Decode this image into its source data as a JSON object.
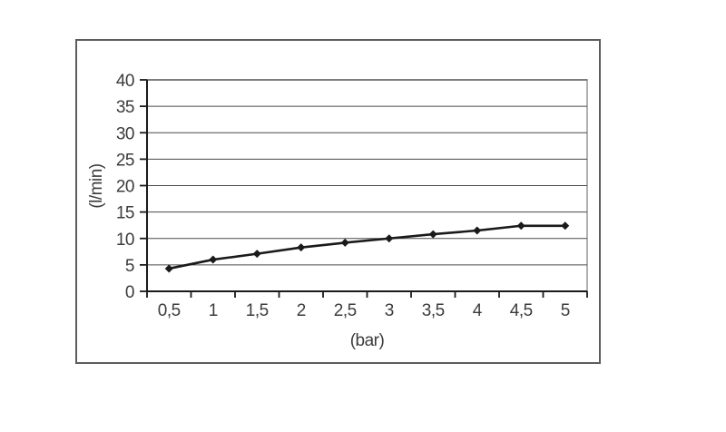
{
  "chart_data": {
    "type": "line",
    "title": "",
    "xlabel": "(bar)",
    "ylabel": "(l/min)",
    "categories": [
      "0,5",
      "1",
      "1,5",
      "2",
      "2,5",
      "3",
      "3,5",
      "4",
      "4,5",
      "5"
    ],
    "x_values": [
      0.5,
      1,
      1.5,
      2,
      2.5,
      3,
      3.5,
      4,
      4.5,
      5
    ],
    "values": [
      4.3,
      6.0,
      7.1,
      8.3,
      9.2,
      10.0,
      10.8,
      11.5,
      12.4,
      12.4
    ],
    "ylim": [
      0,
      40
    ],
    "ytick_step": 5,
    "ytick_labels": [
      "0",
      "5",
      "10",
      "15",
      "20",
      "25",
      "30",
      "35",
      "40"
    ],
    "grid": true,
    "legend": "none",
    "marker": "diamond",
    "colors": {
      "line": "#1a1a1a",
      "marker": "#1a1a1a",
      "gridline": "#4a4a4a",
      "axis": "#1a1a1a",
      "plot_border": "#b0b0b0",
      "frame_border": "#5c5c5c",
      "text": "#3c3c3c",
      "background": "#ffffff"
    }
  }
}
